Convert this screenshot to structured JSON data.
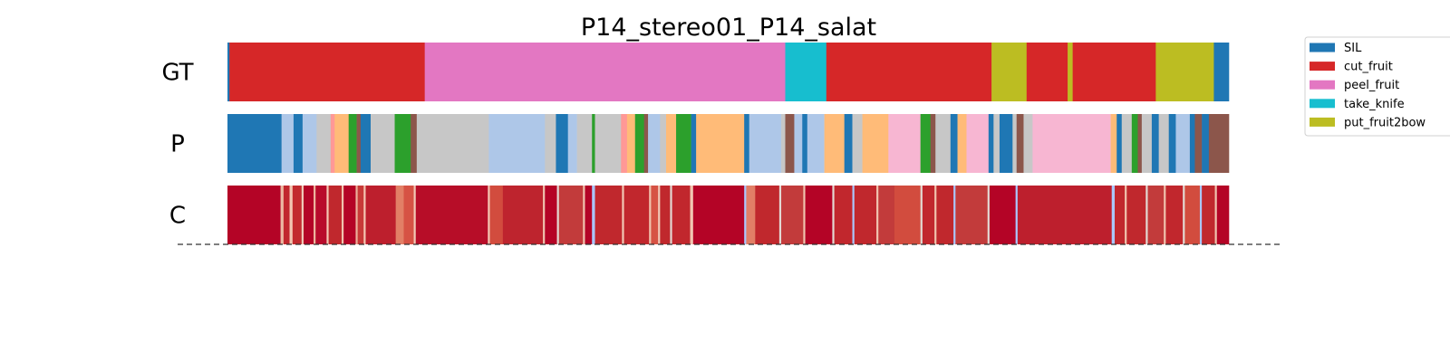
{
  "chart_data": {
    "type": "segmentation",
    "title": "P14_stereo01_P14_salat",
    "x_range": [
      0,
      100
    ],
    "legend": {
      "placement": "top-right",
      "entries": [
        {
          "label": "SIL",
          "color": "#1f77b4"
        },
        {
          "label": "cut_fruit",
          "color": "#d62728"
        },
        {
          "label": "peel_fruit",
          "color": "#e377c2"
        },
        {
          "label": "take_knife",
          "color": "#17becf"
        },
        {
          "label": "put_fruit2bow",
          "color": "#bcbd22"
        }
      ]
    },
    "rows": [
      {
        "label": "GT",
        "segments": [
          {
            "start": 0.0,
            "end": 0.2,
            "color": "#1f77b4"
          },
          {
            "start": 0.2,
            "end": 19.7,
            "color": "#d62728"
          },
          {
            "start": 19.7,
            "end": 55.7,
            "color": "#e377c2"
          },
          {
            "start": 55.7,
            "end": 59.8,
            "color": "#17becf"
          },
          {
            "start": 59.8,
            "end": 76.3,
            "color": "#d62728"
          },
          {
            "start": 76.3,
            "end": 79.8,
            "color": "#bcbd22"
          },
          {
            "start": 79.8,
            "end": 83.9,
            "color": "#d62728"
          },
          {
            "start": 83.9,
            "end": 84.4,
            "color": "#bcbd22"
          },
          {
            "start": 84.4,
            "end": 92.7,
            "color": "#d62728"
          },
          {
            "start": 92.7,
            "end": 98.5,
            "color": "#bcbd22"
          },
          {
            "start": 98.5,
            "end": 100.0,
            "color": "#1f77b4"
          }
        ]
      },
      {
        "label": "P",
        "segments": [
          {
            "start": 0.0,
            "end": 5.4,
            "color": "#1f77b4"
          },
          {
            "start": 5.4,
            "end": 6.6,
            "color": "#aec7e8"
          },
          {
            "start": 6.6,
            "end": 7.5,
            "color": "#1f77b4"
          },
          {
            "start": 7.5,
            "end": 8.9,
            "color": "#aec7e8"
          },
          {
            "start": 8.9,
            "end": 10.3,
            "color": "#c7c7c7"
          },
          {
            "start": 10.3,
            "end": 10.7,
            "color": "#ff9896"
          },
          {
            "start": 10.7,
            "end": 12.1,
            "color": "#ffbb78"
          },
          {
            "start": 12.1,
            "end": 12.9,
            "color": "#2ca02c"
          },
          {
            "start": 12.9,
            "end": 13.3,
            "color": "#8c564b"
          },
          {
            "start": 13.3,
            "end": 14.3,
            "color": "#1f77b4"
          },
          {
            "start": 14.3,
            "end": 16.7,
            "color": "#c7c7c7"
          },
          {
            "start": 16.7,
            "end": 18.3,
            "color": "#2ca02c"
          },
          {
            "start": 18.3,
            "end": 18.9,
            "color": "#8c564b"
          },
          {
            "start": 18.9,
            "end": 26.1,
            "color": "#c7c7c7"
          },
          {
            "start": 26.1,
            "end": 31.7,
            "color": "#aec7e8"
          },
          {
            "start": 31.7,
            "end": 32.8,
            "color": "#c7c7c7"
          },
          {
            "start": 32.8,
            "end": 34.0,
            "color": "#1f77b4"
          },
          {
            "start": 34.0,
            "end": 34.9,
            "color": "#aec7e8"
          },
          {
            "start": 34.9,
            "end": 36.4,
            "color": "#c7c7c7"
          },
          {
            "start": 36.4,
            "end": 36.7,
            "color": "#2ca02c"
          },
          {
            "start": 36.7,
            "end": 39.3,
            "color": "#c7c7c7"
          },
          {
            "start": 39.3,
            "end": 39.9,
            "color": "#ff9896"
          },
          {
            "start": 39.9,
            "end": 40.7,
            "color": "#ffbb78"
          },
          {
            "start": 40.7,
            "end": 41.6,
            "color": "#2ca02c"
          },
          {
            "start": 41.6,
            "end": 42.0,
            "color": "#8c564b"
          },
          {
            "start": 42.0,
            "end": 43.2,
            "color": "#aec7e8"
          },
          {
            "start": 43.2,
            "end": 43.8,
            "color": "#c7c7c7"
          },
          {
            "start": 43.8,
            "end": 44.8,
            "color": "#ffbb78"
          },
          {
            "start": 44.8,
            "end": 46.3,
            "color": "#2ca02c"
          },
          {
            "start": 46.3,
            "end": 46.8,
            "color": "#1f77b4"
          },
          {
            "start": 46.8,
            "end": 51.6,
            "color": "#ffbb78"
          },
          {
            "start": 51.6,
            "end": 52.1,
            "color": "#1f77b4"
          },
          {
            "start": 52.1,
            "end": 55.3,
            "color": "#aec7e8"
          },
          {
            "start": 55.3,
            "end": 55.7,
            "color": "#c7c7c7"
          },
          {
            "start": 55.7,
            "end": 56.6,
            "color": "#8c564b"
          },
          {
            "start": 56.6,
            "end": 57.4,
            "color": "#aec7e8"
          },
          {
            "start": 57.4,
            "end": 57.9,
            "color": "#1f77b4"
          },
          {
            "start": 57.9,
            "end": 59.6,
            "color": "#aec7e8"
          },
          {
            "start": 59.6,
            "end": 61.6,
            "color": "#ffbb78"
          },
          {
            "start": 61.6,
            "end": 62.4,
            "color": "#1f77b4"
          },
          {
            "start": 62.4,
            "end": 63.4,
            "color": "#c7c7c7"
          },
          {
            "start": 63.4,
            "end": 66.0,
            "color": "#ffbb78"
          },
          {
            "start": 66.0,
            "end": 69.2,
            "color": "#f7b6d2"
          },
          {
            "start": 69.2,
            "end": 70.2,
            "color": "#2ca02c"
          },
          {
            "start": 70.2,
            "end": 70.7,
            "color": "#8c564b"
          },
          {
            "start": 70.7,
            "end": 72.2,
            "color": "#c7c7c7"
          },
          {
            "start": 72.2,
            "end": 72.9,
            "color": "#1f77b4"
          },
          {
            "start": 72.9,
            "end": 73.8,
            "color": "#ffbb78"
          },
          {
            "start": 73.8,
            "end": 76.0,
            "color": "#f7b6d2"
          },
          {
            "start": 76.0,
            "end": 76.5,
            "color": "#1f77b4"
          },
          {
            "start": 76.5,
            "end": 77.1,
            "color": "#c7c7c7"
          },
          {
            "start": 77.1,
            "end": 78.4,
            "color": "#1f77b4"
          },
          {
            "start": 78.4,
            "end": 78.8,
            "color": "#c7c7c7"
          },
          {
            "start": 78.8,
            "end": 79.5,
            "color": "#8c564b"
          },
          {
            "start": 79.5,
            "end": 80.4,
            "color": "#c7c7c7"
          },
          {
            "start": 80.4,
            "end": 88.2,
            "color": "#f7b6d2"
          },
          {
            "start": 88.2,
            "end": 88.8,
            "color": "#ffbb78"
          },
          {
            "start": 88.8,
            "end": 89.3,
            "color": "#1f77b4"
          },
          {
            "start": 89.3,
            "end": 90.3,
            "color": "#c7c7c7"
          },
          {
            "start": 90.3,
            "end": 90.9,
            "color": "#2ca02c"
          },
          {
            "start": 90.9,
            "end": 91.3,
            "color": "#8c564b"
          },
          {
            "start": 91.3,
            "end": 92.3,
            "color": "#c7c7c7"
          },
          {
            "start": 92.3,
            "end": 93.0,
            "color": "#1f77b4"
          },
          {
            "start": 93.0,
            "end": 94.0,
            "color": "#c7c7c7"
          },
          {
            "start": 94.0,
            "end": 94.7,
            "color": "#1f77b4"
          },
          {
            "start": 94.7,
            "end": 96.1,
            "color": "#aec7e8"
          },
          {
            "start": 96.1,
            "end": 96.6,
            "color": "#1f77b4"
          },
          {
            "start": 96.6,
            "end": 97.3,
            "color": "#8c564b"
          },
          {
            "start": 97.3,
            "end": 98.0,
            "color": "#1f77b4"
          },
          {
            "start": 98.0,
            "end": 100.0,
            "color": "#8c564b"
          }
        ]
      },
      {
        "label": "C",
        "base_color": "#b40426",
        "segments": [
          {
            "start": 0.0,
            "end": 5.3,
            "color": "#b40426"
          },
          {
            "start": 5.3,
            "end": 5.6,
            "color": "#ecb7a1"
          },
          {
            "start": 5.6,
            "end": 6.2,
            "color": "#c1272d"
          },
          {
            "start": 6.2,
            "end": 6.5,
            "color": "#f2c5b1"
          },
          {
            "start": 6.5,
            "end": 7.4,
            "color": "#c22a2e"
          },
          {
            "start": 7.4,
            "end": 7.6,
            "color": "#f0cab8"
          },
          {
            "start": 7.6,
            "end": 8.6,
            "color": "#b40426"
          },
          {
            "start": 8.6,
            "end": 8.8,
            "color": "#eeb79f"
          },
          {
            "start": 8.8,
            "end": 9.9,
            "color": "#b80b2b"
          },
          {
            "start": 9.9,
            "end": 10.1,
            "color": "#f4c6b3"
          },
          {
            "start": 10.1,
            "end": 11.4,
            "color": "#c0282d"
          },
          {
            "start": 11.4,
            "end": 11.6,
            "color": "#f0c3ae"
          },
          {
            "start": 11.6,
            "end": 12.8,
            "color": "#b40426"
          },
          {
            "start": 12.8,
            "end": 13.0,
            "color": "#ebb09a"
          },
          {
            "start": 13.0,
            "end": 13.6,
            "color": "#c83a38"
          },
          {
            "start": 13.6,
            "end": 13.8,
            "color": "#f4c6b3"
          },
          {
            "start": 13.8,
            "end": 16.8,
            "color": "#bd1f2d"
          },
          {
            "start": 16.8,
            "end": 17.6,
            "color": "#e27f66"
          },
          {
            "start": 17.6,
            "end": 18.6,
            "color": "#d65244"
          },
          {
            "start": 18.6,
            "end": 18.8,
            "color": "#f2c8b5"
          },
          {
            "start": 18.8,
            "end": 26.0,
            "color": "#b70d28"
          },
          {
            "start": 26.0,
            "end": 26.2,
            "color": "#f4c6b3"
          },
          {
            "start": 26.2,
            "end": 27.5,
            "color": "#d24c3e"
          },
          {
            "start": 27.5,
            "end": 31.5,
            "color": "#be242e"
          },
          {
            "start": 31.5,
            "end": 31.7,
            "color": "#f0c3ae"
          },
          {
            "start": 31.7,
            "end": 32.9,
            "color": "#b40426"
          },
          {
            "start": 32.9,
            "end": 33.1,
            "color": "#e3d9d3"
          },
          {
            "start": 33.1,
            "end": 35.5,
            "color": "#c23b3b"
          },
          {
            "start": 35.5,
            "end": 35.7,
            "color": "#f0c3ae"
          },
          {
            "start": 35.7,
            "end": 36.4,
            "color": "#b40426"
          },
          {
            "start": 36.4,
            "end": 36.7,
            "color": "#aac7fd"
          },
          {
            "start": 36.7,
            "end": 39.4,
            "color": "#c0282d"
          },
          {
            "start": 39.4,
            "end": 39.6,
            "color": "#f2c8b5"
          },
          {
            "start": 39.6,
            "end": 42.1,
            "color": "#c1272d"
          },
          {
            "start": 42.1,
            "end": 42.3,
            "color": "#f0c3ae"
          },
          {
            "start": 42.3,
            "end": 43.0,
            "color": "#d65244"
          },
          {
            "start": 43.0,
            "end": 43.2,
            "color": "#f0cab8"
          },
          {
            "start": 43.2,
            "end": 44.2,
            "color": "#c0282d"
          },
          {
            "start": 44.2,
            "end": 44.4,
            "color": "#e3d9d3"
          },
          {
            "start": 44.4,
            "end": 46.2,
            "color": "#c1272d"
          },
          {
            "start": 46.2,
            "end": 46.5,
            "color": "#f2c5b1"
          },
          {
            "start": 46.5,
            "end": 51.6,
            "color": "#b40426"
          },
          {
            "start": 51.6,
            "end": 51.8,
            "color": "#aac7fd"
          },
          {
            "start": 51.8,
            "end": 52.7,
            "color": "#e27f66"
          },
          {
            "start": 52.7,
            "end": 55.1,
            "color": "#c0282d"
          },
          {
            "start": 55.1,
            "end": 55.3,
            "color": "#e3d9d3"
          },
          {
            "start": 55.3,
            "end": 57.5,
            "color": "#c23b3b"
          },
          {
            "start": 57.5,
            "end": 57.7,
            "color": "#f0c3ae"
          },
          {
            "start": 57.7,
            "end": 60.4,
            "color": "#b40426"
          },
          {
            "start": 60.4,
            "end": 60.6,
            "color": "#e3d9d3"
          },
          {
            "start": 60.6,
            "end": 62.4,
            "color": "#c1272d"
          },
          {
            "start": 62.4,
            "end": 62.6,
            "color": "#aac7fd"
          },
          {
            "start": 62.6,
            "end": 64.8,
            "color": "#c0282d"
          },
          {
            "start": 64.8,
            "end": 65.0,
            "color": "#f0c3ae"
          },
          {
            "start": 65.0,
            "end": 66.6,
            "color": "#c23b3b"
          },
          {
            "start": 66.6,
            "end": 69.2,
            "color": "#d24c3e"
          },
          {
            "start": 69.2,
            "end": 69.4,
            "color": "#e3d9d3"
          },
          {
            "start": 69.4,
            "end": 70.6,
            "color": "#c1272d"
          },
          {
            "start": 70.6,
            "end": 70.8,
            "color": "#f0c3ae"
          },
          {
            "start": 70.8,
            "end": 72.5,
            "color": "#c0282d"
          },
          {
            "start": 72.5,
            "end": 72.7,
            "color": "#aac7fd"
          },
          {
            "start": 72.7,
            "end": 75.9,
            "color": "#c23b3b"
          },
          {
            "start": 75.9,
            "end": 76.1,
            "color": "#e3d9d3"
          },
          {
            "start": 76.1,
            "end": 78.7,
            "color": "#b40426"
          },
          {
            "start": 78.7,
            "end": 78.9,
            "color": "#aac7fd"
          },
          {
            "start": 78.9,
            "end": 88.3,
            "color": "#bd1f2d"
          },
          {
            "start": 88.3,
            "end": 88.6,
            "color": "#aac7fd"
          },
          {
            "start": 88.6,
            "end": 89.6,
            "color": "#c1272d"
          },
          {
            "start": 89.6,
            "end": 89.8,
            "color": "#f0c3ae"
          },
          {
            "start": 89.8,
            "end": 91.7,
            "color": "#c0282d"
          },
          {
            "start": 91.7,
            "end": 91.9,
            "color": "#e3d9d3"
          },
          {
            "start": 91.9,
            "end": 93.5,
            "color": "#c23b3b"
          },
          {
            "start": 93.5,
            "end": 93.7,
            "color": "#f0c3ae"
          },
          {
            "start": 93.7,
            "end": 95.4,
            "color": "#c1272d"
          },
          {
            "start": 95.4,
            "end": 95.6,
            "color": "#e3d9d3"
          },
          {
            "start": 95.6,
            "end": 97.1,
            "color": "#d24c3e"
          },
          {
            "start": 97.1,
            "end": 97.3,
            "color": "#aac7fd"
          },
          {
            "start": 97.3,
            "end": 98.6,
            "color": "#c0282d"
          },
          {
            "start": 98.6,
            "end": 98.8,
            "color": "#f0c3ae"
          },
          {
            "start": 98.8,
            "end": 100.0,
            "color": "#b40426"
          }
        ]
      }
    ]
  }
}
